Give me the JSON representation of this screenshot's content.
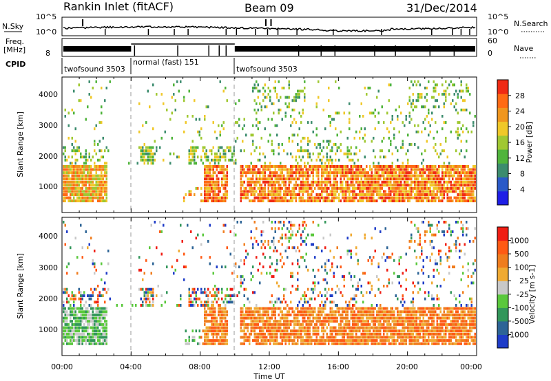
{
  "header": {
    "station": "Rankin Inlet (fitACF)",
    "beam": "Beam 09",
    "date": "31/Dec/2014"
  },
  "nsky_panel": {
    "left_label": "N.Sky",
    "left_ticks": [
      "10^5",
      "10^0"
    ],
    "right_label": "N.Search",
    "right_ticks": [
      "10^5",
      "10^0"
    ]
  },
  "freq_panel": {
    "left_label_1": "Freq.",
    "left_label_2": "[MHz]",
    "left_ticks": [
      "8"
    ],
    "right_label": "Nave",
    "right_ticks": [
      "60",
      "0"
    ]
  },
  "cpid": {
    "label": "CPID",
    "segments": [
      {
        "name": "twofsound 3503",
        "start_hour": 0.0
      },
      {
        "name": "normal (fast) 151",
        "start_hour": 4.0
      },
      {
        "name": "twofsound 3503",
        "start_hour": 9.8
      }
    ]
  },
  "chart_data": [
    {
      "type": "heatmap",
      "name": "power",
      "ylabel": "Slant Range [km]",
      "yticks": [
        "1000",
        "2000",
        "3000",
        "4000"
      ],
      "xlim_hours": [
        0,
        24
      ],
      "ylim_km": [
        180,
        4500
      ],
      "colorbar": {
        "label": "Power [dB]",
        "ticks": [
          "4",
          "8",
          "12",
          "16",
          "20",
          "24",
          "28"
        ],
        "colors": [
          "#1e1ee6",
          "#2a5ac8",
          "#3c8c6e",
          "#50b43c",
          "#a0c832",
          "#f0c828",
          "#f0961e",
          "#ff6a14",
          "#f02a14"
        ]
      }
    },
    {
      "type": "heatmap",
      "name": "velocity",
      "ylabel": "Slant Range [km]",
      "yticks": [
        "1000",
        "2000",
        "3000",
        "4000"
      ],
      "xlim_hours": [
        0,
        24
      ],
      "ylim_km": [
        180,
        4500
      ],
      "colorbar": {
        "label": "Velocity [m s-1]",
        "ticks": [
          "1000",
          "500",
          "100",
          "25",
          "-25",
          "-100",
          "-500",
          "-1000"
        ],
        "colors": [
          "#1e3cc8",
          "#2d6496",
          "#32965a",
          "#5ac83c",
          "#c8c8c8",
          "#f0aa32",
          "#f07d1e",
          "#ff5a14",
          "#f01e14"
        ]
      }
    }
  ],
  "xaxis": {
    "ticks": [
      "00:00",
      "04:00",
      "08:00",
      "12:00",
      "16:00",
      "20:00",
      "00:00"
    ],
    "label": "Time UT"
  }
}
